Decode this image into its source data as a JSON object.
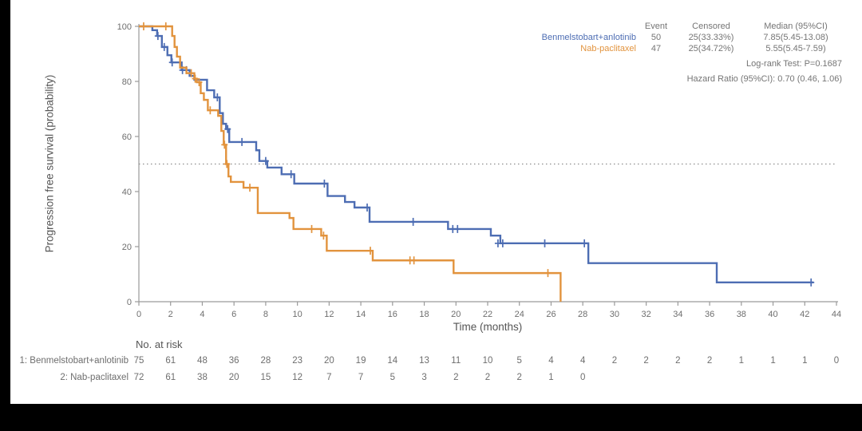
{
  "colors": {
    "arm1": "#4d6db3",
    "arm2": "#e2933d",
    "axis": "#9a9a9a",
    "tick_label": "#6e6e6e",
    "reference_line": "#8c8c8c",
    "frame_bar": "#000000"
  },
  "chart_data": {
    "type": "line",
    "subtype": "kaplan-meier-step",
    "title": "",
    "xlabel": "Time (months)",
    "ylabel": "Progression free survival (probability)",
    "xlim": [
      0,
      44
    ],
    "ylim": [
      0,
      100
    ],
    "xticks": [
      0,
      2,
      4,
      6,
      8,
      10,
      12,
      14,
      16,
      18,
      20,
      22,
      24,
      26,
      28,
      30,
      32,
      34,
      36,
      38,
      40,
      42,
      44
    ],
    "yticks": [
      0,
      20,
      40,
      60,
      80,
      100
    ],
    "grid": false,
    "reference_line_y": 50,
    "series": [
      {
        "name": "Benmelstobart+anlotinib",
        "color": "#4d6db3",
        "end_time": 42.55,
        "steps": [
          [
            0,
            100
          ],
          [
            0.85,
            98.6
          ],
          [
            1.15,
            96.5
          ],
          [
            1.45,
            92.5
          ],
          [
            1.8,
            89.5
          ],
          [
            2.05,
            86.9
          ],
          [
            2.7,
            84.1
          ],
          [
            3.2,
            82
          ],
          [
            3.5,
            80.6
          ],
          [
            4.3,
            76.8
          ],
          [
            4.75,
            74.2
          ],
          [
            5.1,
            68.5
          ],
          [
            5.3,
            64.6
          ],
          [
            5.5,
            62.7
          ],
          [
            5.7,
            58
          ],
          [
            7.4,
            55
          ],
          [
            7.6,
            51.1
          ],
          [
            8.1,
            48.7
          ],
          [
            9.0,
            46.3
          ],
          [
            9.8,
            42.9
          ],
          [
            11.9,
            38.4
          ],
          [
            13.0,
            36.2
          ],
          [
            13.6,
            34.2
          ],
          [
            14.55,
            29
          ],
          [
            19.5,
            26.4
          ],
          [
            22.2,
            24
          ],
          [
            22.8,
            21.2
          ],
          [
            28.35,
            14
          ],
          [
            36.45,
            7
          ]
        ],
        "censors": [
          [
            1.2,
            96.5
          ],
          [
            1.6,
            92.5
          ],
          [
            2.1,
            86.9
          ],
          [
            2.75,
            84.1
          ],
          [
            3.0,
            84.1
          ],
          [
            4.95,
            74.2
          ],
          [
            5.6,
            62.7
          ],
          [
            6.5,
            58
          ],
          [
            8.0,
            51.1
          ],
          [
            9.6,
            46.3
          ],
          [
            11.7,
            42.9
          ],
          [
            14.4,
            34.2
          ],
          [
            17.3,
            29
          ],
          [
            19.8,
            26.4
          ],
          [
            20.1,
            26.4
          ],
          [
            22.65,
            21.2
          ],
          [
            22.95,
            21.2
          ],
          [
            25.6,
            21.2
          ],
          [
            28.1,
            21.2
          ],
          [
            42.4,
            7
          ]
        ]
      },
      {
        "name": "Nab-paclitaxel",
        "color": "#e2933d",
        "end_time": 26.6,
        "steps": [
          [
            0,
            100
          ],
          [
            2.1,
            96.5
          ],
          [
            2.25,
            92.5
          ],
          [
            2.4,
            89
          ],
          [
            2.6,
            85
          ],
          [
            3.0,
            83
          ],
          [
            3.5,
            81
          ],
          [
            3.65,
            79.7
          ],
          [
            3.9,
            75.7
          ],
          [
            4.1,
            73.3
          ],
          [
            4.35,
            69.5
          ],
          [
            5.0,
            67.5
          ],
          [
            5.2,
            62
          ],
          [
            5.35,
            57
          ],
          [
            5.5,
            50
          ],
          [
            5.65,
            45.5
          ],
          [
            5.8,
            43.5
          ],
          [
            6.6,
            41.4
          ],
          [
            7.5,
            32.2
          ],
          [
            9.5,
            30.4
          ],
          [
            9.75,
            26.4
          ],
          [
            11.5,
            24
          ],
          [
            11.85,
            18.5
          ],
          [
            14.75,
            15
          ],
          [
            19.85,
            10.4
          ],
          [
            26.6,
            0
          ]
        ],
        "censors": [
          [
            0.3,
            100
          ],
          [
            1.7,
            100
          ],
          [
            3.3,
            83
          ],
          [
            3.55,
            81
          ],
          [
            3.8,
            79.7
          ],
          [
            4.5,
            69.5
          ],
          [
            5.4,
            57
          ],
          [
            5.55,
            50
          ],
          [
            7.0,
            41.4
          ],
          [
            10.9,
            26.4
          ],
          [
            11.65,
            24
          ],
          [
            14.6,
            18.5
          ],
          [
            17.1,
            15
          ],
          [
            17.35,
            15
          ],
          [
            25.8,
            10.4
          ]
        ]
      }
    ]
  },
  "legend": {
    "headers": [
      "Event",
      "Censored",
      "Median (95%CI)"
    ],
    "rows": [
      {
        "name": "Benmelstobart+anlotinib",
        "color": "#4d6db3",
        "event": "50",
        "censored": "25(33.33%)",
        "median": "7.85(5.45-13.08)"
      },
      {
        "name": "Nab-paclitaxel",
        "color": "#e2933d",
        "event": "47",
        "censored": "25(34.72%)",
        "median": "5.55(5.45-7.59)"
      }
    ],
    "footnotes": [
      "Log-rank Test: P=0.1687",
      "Hazard Ratio (95%CI): 0.70 (0.46, 1.06)"
    ]
  },
  "risk_table": {
    "title": "No. at risk",
    "interval_months": 2,
    "rows": [
      {
        "label": "1: Benmelstobart+anlotinib",
        "values": [
          75,
          61,
          48,
          36,
          28,
          23,
          20,
          19,
          14,
          13,
          11,
          10,
          5,
          4,
          4,
          2,
          2,
          2,
          2,
          1,
          1,
          1,
          0
        ]
      },
      {
        "label": "2: Nab-paclitaxel",
        "values": [
          72,
          61,
          38,
          20,
          15,
          12,
          7,
          7,
          5,
          3,
          2,
          2,
          2,
          1,
          0
        ]
      }
    ]
  }
}
